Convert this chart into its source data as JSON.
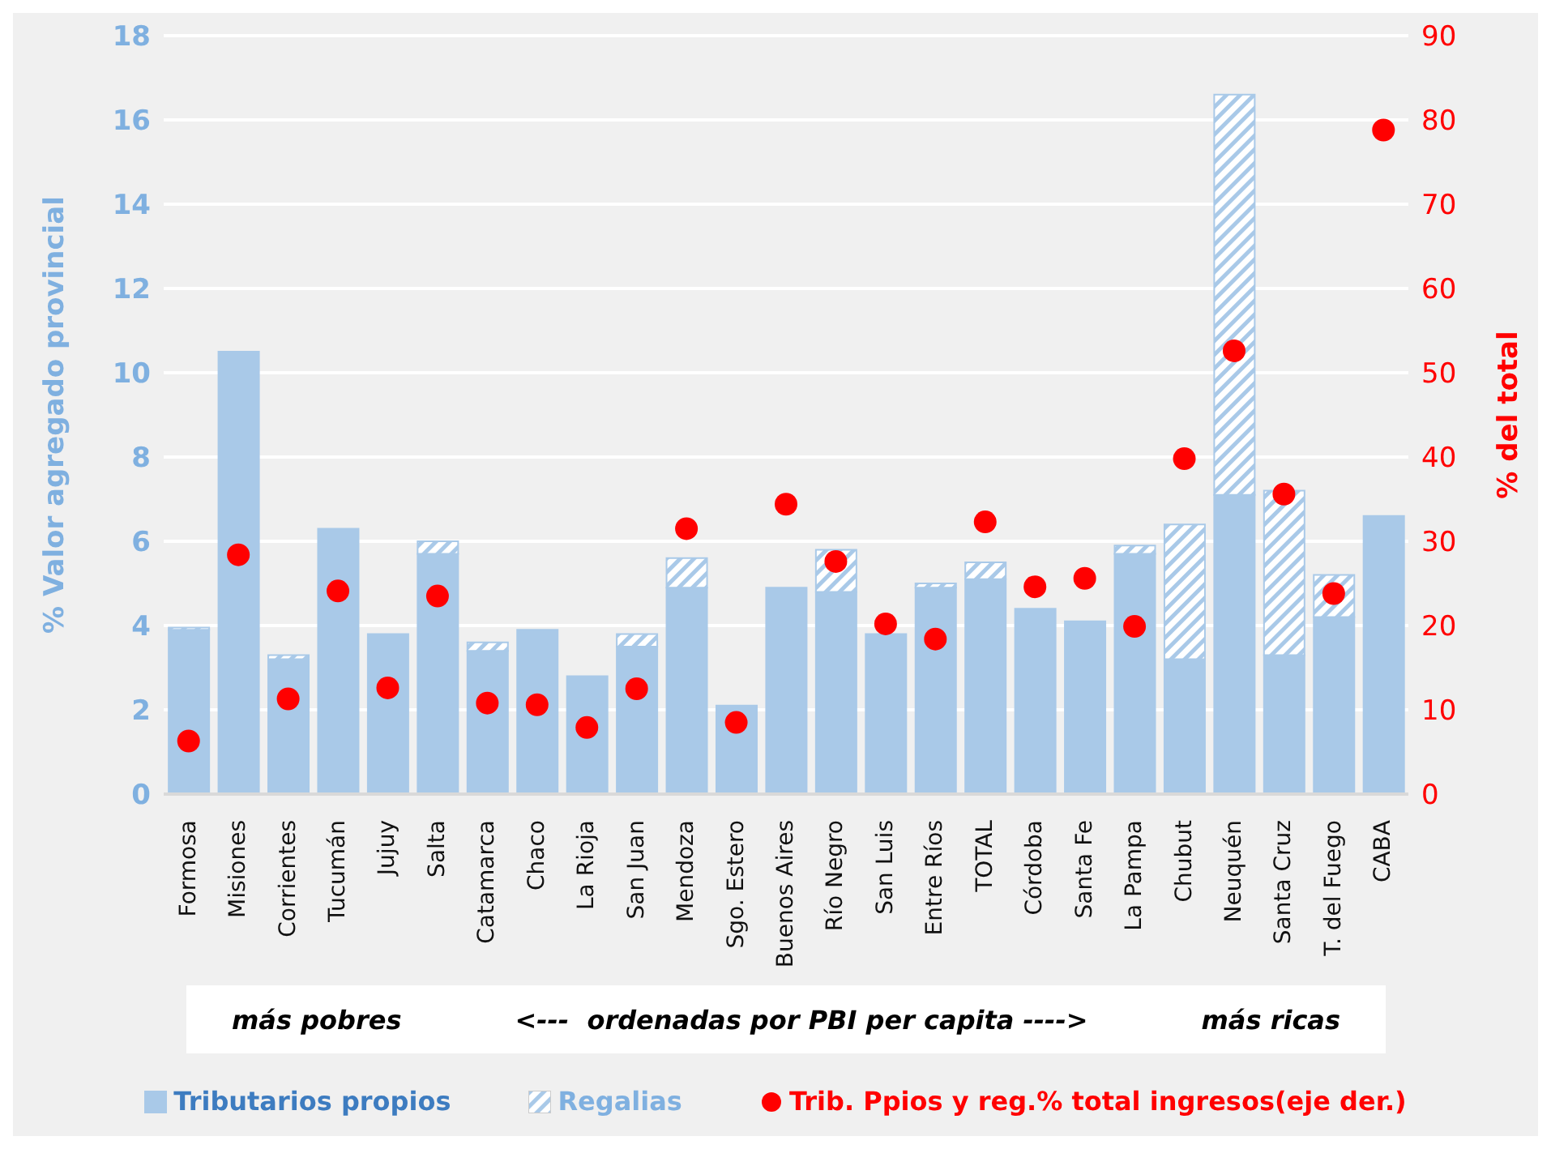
{
  "chart_data": {
    "type": "bar",
    "stacked": true,
    "ylabel": "% Valor agregado provincial",
    "y2label": "% del total",
    "categories": [
      "Formosa",
      "Misiones",
      "Corrientes",
      "Tucumán",
      "Jujuy",
      "Salta",
      "Catamarca",
      "Chaco",
      "La Rioja",
      "San Juan",
      "Mendoza",
      "Sgo. Estero",
      "Buenos Aires",
      "Río Negro",
      "San Luis",
      "Entre Ríos",
      "TOTAL",
      "Córdoba",
      "Santa Fe",
      "La Pampa",
      "Chubut",
      "Neuquén",
      "Santa Cruz",
      "T. del Fuego",
      "CABA"
    ],
    "series": [
      {
        "name": "Tributarios propios",
        "color": "#a9c9e8",
        "values": [
          3.9,
          10.5,
          3.2,
          6.3,
          3.8,
          5.7,
          3.4,
          3.9,
          2.8,
          3.5,
          4.9,
          2.1,
          4.9,
          4.8,
          3.8,
          4.9,
          5.1,
          4.4,
          4.1,
          5.7,
          3.2,
          7.1,
          3.3,
          4.2,
          6.6
        ]
      },
      {
        "name": "Regalias",
        "color": "#a9c9e8",
        "values": [
          0.05,
          0,
          0.1,
          0,
          0,
          0.3,
          0.2,
          0,
          0,
          0.3,
          0.7,
          0,
          0,
          1.0,
          0,
          0.1,
          0.4,
          0,
          0,
          0.2,
          3.2,
          9.5,
          3.9,
          1.0,
          0
        ]
      },
      {
        "name": "Trib. Ppios y reg.% total ingresos(eje der.)",
        "type": "scatter",
        "axis": "y2",
        "color": "#ff0000",
        "values": [
          6.3,
          28.4,
          11.3,
          24.1,
          12.6,
          23.5,
          10.8,
          10.6,
          7.9,
          12.5,
          31.5,
          8.5,
          34.4,
          27.6,
          20.2,
          18.4,
          32.3,
          24.6,
          25.6,
          19.9,
          39.8,
          52.6,
          35.6,
          23.8,
          78.8
        ]
      }
    ],
    "ylim": [
      0,
      18
    ],
    "yticks": [
      0,
      2,
      4,
      6,
      8,
      10,
      12,
      14,
      16,
      18
    ],
    "y2lim": [
      0,
      90
    ],
    "y2ticks": [
      0,
      10,
      20,
      30,
      40,
      50,
      60,
      70,
      80,
      90
    ],
    "grid": "y",
    "legend": "bottom",
    "marker": "circle",
    "annotations": [
      "más pobres",
      "<---  ordenadas por PBI per capita ---->",
      "más ricas"
    ]
  }
}
